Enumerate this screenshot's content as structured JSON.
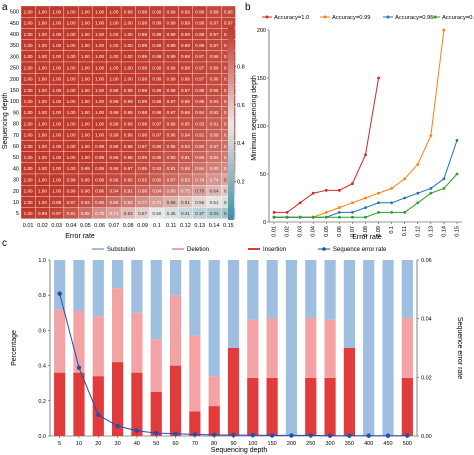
{
  "panels": {
    "a": {
      "label": "a"
    },
    "b": {
      "label": "b"
    },
    "c": {
      "label": "c"
    }
  },
  "chart_data": [
    {
      "panel": "a",
      "type": "heatmap",
      "xlabel": "Error rate",
      "ylabel": "Sequencing depth",
      "x_categories": [
        "0.01",
        "0.02",
        "0.03",
        "0.04",
        "0.05",
        "0.06",
        "0.07",
        "0.08",
        "0.09",
        "0.1",
        "0.11",
        "0.12",
        "0.13",
        "0.14",
        "0.15"
      ],
      "y_categories": [
        "5",
        "10",
        "20",
        "30",
        "40",
        "50",
        "60",
        "70",
        "80",
        "90",
        "100",
        "150",
        "200",
        "250",
        "300",
        "350",
        "400",
        "450",
        "500"
      ],
      "colorbar": {
        "ticks": [
          "0.2",
          "0.4",
          "0.6",
          "0.8"
        ],
        "range": [
          0,
          1
        ],
        "low_color": "#3f8fa5",
        "mid_color": "#e8e8e8",
        "high_color": "#c0392b"
      },
      "rows": [
        {
          "depth": "500",
          "values": [
            "1.00",
            "1.00",
            "1.00",
            "1.00",
            "1.00",
            "1.00",
            "1.00",
            "0.99",
            "0.99",
            "0.99",
            "0.99",
            "0.99",
            "0.98",
            "0.96",
            "0.96"
          ]
        },
        {
          "depth": "450",
          "values": [
            "1.00",
            "1.00",
            "1.00",
            "1.00",
            "1.00",
            "1.00",
            "1.00",
            "1.00",
            "0.99",
            "0.99",
            "0.99",
            "0.99",
            "0.98",
            "0.97",
            "0.97"
          ]
        },
        {
          "depth": "400",
          "values": [
            "1.00",
            "1.00",
            "1.00",
            "1.00",
            "1.00",
            "1.00",
            "1.00",
            "1.00",
            "0.99",
            "0.99",
            "0.99",
            "0.99",
            "0.98",
            "0.97",
            "0.97"
          ]
        },
        {
          "depth": "350",
          "values": [
            "1.00",
            "1.00",
            "1.00",
            "1.00",
            "1.00",
            "1.00",
            "1.00",
            "1.00",
            "0.99",
            "0.99",
            "0.99",
            "0.99",
            "0.98",
            "0.97",
            "0.96"
          ]
        },
        {
          "depth": "300",
          "values": [
            "1.00",
            "1.00",
            "1.00",
            "1.00",
            "1.00",
            "1.00",
            "1.00",
            "1.00",
            "0.99",
            "0.99",
            "0.99",
            "0.98",
            "0.97",
            "0.96",
            "0.95"
          ]
        },
        {
          "depth": "250",
          "values": [
            "1.00",
            "1.00",
            "1.00",
            "1.00",
            "1.00",
            "1.00",
            "1.00",
            "1.00",
            "0.99",
            "0.99",
            "0.99",
            "0.98",
            "0.97",
            "0.96",
            "0.95"
          ]
        },
        {
          "depth": "200",
          "values": [
            "1.00",
            "1.00",
            "1.00",
            "1.00",
            "1.00",
            "1.00",
            "1.00",
            "1.00",
            "0.99",
            "0.99",
            "0.99",
            "0.98",
            "0.97",
            "0.96",
            "0.94"
          ]
        },
        {
          "depth": "150",
          "values": [
            "1.00",
            "1.00",
            "1.00",
            "1.00",
            "1.00",
            "1.00",
            "0.99",
            "0.99",
            "0.99",
            "0.99",
            "0.98",
            "0.97",
            "0.96",
            "0.95",
            "0.93"
          ]
        },
        {
          "depth": "100",
          "values": [
            "1.00",
            "1.00",
            "1.00",
            "1.00",
            "1.00",
            "1.00",
            "0.99",
            "0.99",
            "0.99",
            "0.98",
            "0.97",
            "0.96",
            "0.95",
            "0.93",
            "0.90"
          ]
        },
        {
          "depth": "90",
          "values": [
            "1.00",
            "1.00",
            "1.00",
            "1.00",
            "1.00",
            "1.00",
            "0.99",
            "0.99",
            "0.98",
            "0.98",
            "0.97",
            "0.96",
            "0.94",
            "0.92",
            "0.89"
          ]
        },
        {
          "depth": "80",
          "values": [
            "1.00",
            "1.00",
            "1.00",
            "1.00",
            "1.00",
            "1.00",
            "0.99",
            "0.99",
            "0.98",
            "0.97",
            "0.96",
            "0.95",
            "0.93",
            "0.91",
            "0.88"
          ]
        },
        {
          "depth": "70",
          "values": [
            "1.00",
            "1.00",
            "1.00",
            "1.00",
            "1.00",
            "1.00",
            "0.99",
            "0.99",
            "0.98",
            "0.97",
            "0.96",
            "0.94",
            "0.92",
            "0.89",
            "0.86"
          ]
        },
        {
          "depth": "60",
          "values": [
            "1.00",
            "1.00",
            "1.00",
            "1.00",
            "1.00",
            "0.99",
            "0.99",
            "0.98",
            "0.97",
            "0.96",
            "0.95",
            "0.93",
            "0.90",
            "0.87",
            "0.84"
          ]
        },
        {
          "depth": "50",
          "values": [
            "1.00",
            "1.00",
            "1.00",
            "1.00",
            "1.00",
            "0.99",
            "0.98",
            "0.98",
            "0.96",
            "0.95",
            "0.93",
            "0.91",
            "0.88",
            "0.84",
            "0.81"
          ]
        },
        {
          "depth": "40",
          "values": [
            "1.00",
            "1.00",
            "1.00",
            "1.00",
            "0.99",
            "0.99",
            "0.98",
            "0.97",
            "0.95",
            "0.93",
            "0.91",
            "0.88",
            "0.84",
            "0.80",
            "0.77"
          ]
        },
        {
          "depth": "30",
          "values": [
            "1.00",
            "1.00",
            "1.00",
            "0.99",
            "0.99",
            "0.98",
            "0.96",
            "0.95",
            "0.93",
            "0.90",
            "0.87",
            "0.83",
            "0.79",
            "0.74",
            "0.69"
          ]
        },
        {
          "depth": "20",
          "values": [
            "1.00",
            "1.00",
            "1.00",
            "0.99",
            "0.98",
            "0.96",
            "0.94",
            "0.91",
            "0.88",
            "0.84",
            "0.80",
            "0.75",
            "0.70",
            "0.64",
            "0.59"
          ]
        },
        {
          "depth": "10",
          "values": [
            "1.00",
            "1.00",
            "0.99",
            "0.97",
            "0.94",
            "0.90",
            "0.86",
            "0.82",
            "0.77",
            "0.71",
            "0.66",
            "0.61",
            "0.56",
            "0.51",
            "0.45"
          ]
        },
        {
          "depth": "5",
          "values": [
            "1.00",
            "0.99",
            "0.97",
            "0.91",
            "0.85",
            "0.76",
            "0.71",
            "0.63",
            "0.57",
            "0.50",
            "0.45",
            "0.41",
            "0.37",
            "0.33",
            "0.30"
          ]
        }
      ]
    },
    {
      "panel": "b",
      "type": "line",
      "xlabel": "Error rate",
      "ylabel": "Minimum sequencing depth",
      "ylim": [
        0,
        200
      ],
      "yticks": [
        "0",
        "50",
        "100",
        "150",
        "200"
      ],
      "x": [
        "0.01",
        "0.02",
        "0.03",
        "0.04",
        "0.05",
        "0.06",
        "0.07",
        "0.08",
        "0.09",
        "0.1",
        "0.11",
        "0.12",
        "0.13",
        "0.14",
        "0.15"
      ],
      "legend_position": "top",
      "series": [
        {
          "name": "Accuracy=1.0",
          "color": "#d62728",
          "values": [
            10,
            10,
            20,
            30,
            33,
            33,
            40,
            70,
            150,
            null,
            null,
            null,
            null,
            null,
            null
          ]
        },
        {
          "name": "Accuracy=0.99",
          "color": "#ff7f0e",
          "values": [
            5,
            5,
            5,
            5,
            10,
            15,
            20,
            25,
            30,
            35,
            45,
            60,
            90,
            200,
            null
          ]
        },
        {
          "name": "Accuracy=0.95",
          "color": "#1f77b4",
          "values": [
            5,
            5,
            5,
            5,
            5,
            10,
            10,
            15,
            20,
            20,
            25,
            30,
            35,
            45,
            85
          ]
        },
        {
          "name": "Accuracy=0.9",
          "color": "#2ca02c",
          "values": [
            5,
            5,
            5,
            5,
            5,
            5,
            5,
            5,
            10,
            10,
            10,
            20,
            30,
            35,
            50
          ]
        }
      ]
    },
    {
      "panel": "c",
      "type": "bar",
      "xlabel": "Sequencing depth",
      "ylabel": "Percentage",
      "y2label": "Sequence error rate",
      "ylim": [
        0,
        1
      ],
      "y2lim": [
        0,
        0.06
      ],
      "yticks": [
        "0.0",
        "0.2",
        "0.4",
        "0.6",
        "0.8",
        "1.0"
      ],
      "y2ticks": [
        "0.00",
        "0.02",
        "0.04",
        "0.06"
      ],
      "legend_position": "top",
      "categories": [
        "5",
        "10",
        "20",
        "30",
        "40",
        "50",
        "60",
        "70",
        "80",
        "90",
        "100",
        "150",
        "200",
        "250",
        "300",
        "350",
        "400",
        "450",
        "500"
      ],
      "series": [
        {
          "name": "Insertion",
          "color": "#e23b3b",
          "values": [
            0.36,
            0.36,
            0.34,
            0.42,
            0.36,
            0.25,
            0.4,
            0.14,
            0.17,
            0.5,
            0.33,
            0.33,
            0.0,
            0.33,
            0.33,
            0.5,
            0.0,
            0.0,
            0.33
          ]
        },
        {
          "name": "Deletion",
          "color": "#f3a3a3",
          "values": [
            0.36,
            0.35,
            0.34,
            0.42,
            0.34,
            0.3,
            0.4,
            0.43,
            0.17,
            0.0,
            0.33,
            0.34,
            0.0,
            0.34,
            0.33,
            0.0,
            0.0,
            0.0,
            0.34
          ]
        },
        {
          "name": "Substution",
          "color": "#9fbfe0",
          "values": [
            0.28,
            0.29,
            0.32,
            0.16,
            0.3,
            0.45,
            0.2,
            0.43,
            0.66,
            0.5,
            0.34,
            0.33,
            1.0,
            0.33,
            0.34,
            0.5,
            1.0,
            1.0,
            0.33
          ]
        }
      ],
      "line": {
        "name": "Sequence error rate",
        "color": "#1f4fb0",
        "values": [
          0.0485,
          0.0233,
          0.0072,
          0.0034,
          0.0018,
          0.001,
          0.0008,
          0.0005,
          0.0004,
          0.0003,
          0.0003,
          0.0002,
          0.0002,
          0.0002,
          0.0001,
          0.0001,
          0.0001,
          0.0001,
          0.0001
        ]
      }
    }
  ]
}
